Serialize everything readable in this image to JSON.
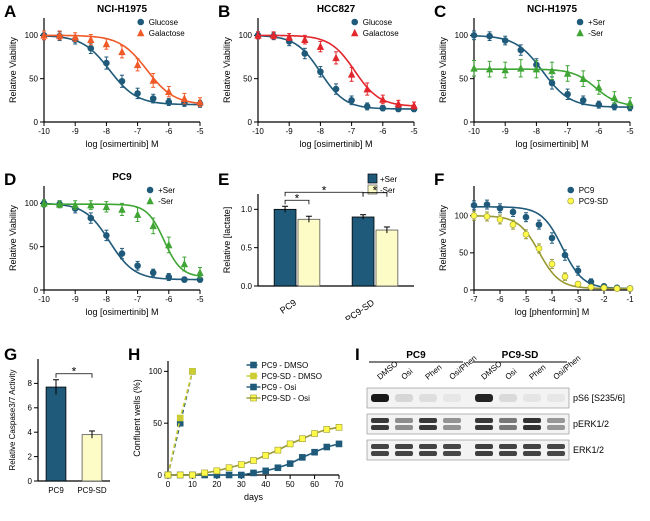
{
  "colors": {
    "blue": "#1f5a7a",
    "orange": "#f05a28",
    "green": "#3fa535",
    "yellow": "#fff94a",
    "yellow_fill": "#fdfcc6",
    "grey": "#444444",
    "black": "#000000"
  },
  "panelA": {
    "label": "A",
    "title": "NCI-H1975",
    "type": "dose_response",
    "xlabel": "log [osimertinib] M",
    "ylabel": "Relative Viability",
    "xlim": [
      -10,
      -5
    ],
    "ylim": [
      0,
      120
    ],
    "yticks": [
      0,
      50,
      100
    ],
    "series": [
      {
        "name": "Glucose",
        "color": "#1f5a7a",
        "marker": "circle",
        "x": [
          -10,
          -9.5,
          -9,
          -8.5,
          -8,
          -7.5,
          -7,
          -6.5,
          -6,
          -5.5,
          -5
        ],
        "y": [
          100,
          99,
          95,
          85,
          68,
          47,
          33,
          27,
          23,
          22,
          21
        ],
        "err": [
          5,
          5,
          5,
          6,
          7,
          7,
          6,
          5,
          4,
          4,
          4
        ],
        "curve": {
          "top": 100,
          "bottom": 20,
          "ec50": -7.9,
          "hill": -1.0
        }
      },
      {
        "name": "Galactose",
        "color": "#f05a28",
        "marker": "triangle",
        "x": [
          -10,
          -9.5,
          -9,
          -8.5,
          -8,
          -7.5,
          -7,
          -6.5,
          -6,
          -5.5,
          -5
        ],
        "y": [
          100,
          100,
          98,
          95,
          90,
          81,
          66,
          48,
          35,
          27,
          23
        ],
        "err": [
          5,
          5,
          5,
          6,
          6,
          7,
          7,
          8,
          6,
          6,
          5
        ],
        "curve": {
          "top": 100,
          "bottom": 20,
          "ec50": -6.7,
          "hill": -1.0
        }
      }
    ]
  },
  "panelB": {
    "label": "B",
    "title": "HCC827",
    "type": "dose_response",
    "xlabel": "log [osimertinib] M",
    "ylabel": "Relative Viability",
    "xlim": [
      -10,
      -5
    ],
    "ylim": [
      0,
      120
    ],
    "yticks": [
      0,
      50,
      100
    ],
    "series": [
      {
        "name": "Glucose",
        "color": "#1f5a7a",
        "marker": "circle",
        "x": [
          -10,
          -9.5,
          -9,
          -8.5,
          -8,
          -7.5,
          -7,
          -6.5,
          -6,
          -5.5,
          -5
        ],
        "y": [
          100,
          99,
          93,
          79,
          58,
          38,
          25,
          18,
          16,
          15,
          15
        ],
        "err": [
          4,
          4,
          5,
          6,
          6,
          6,
          5,
          4,
          3,
          3,
          3
        ],
        "curve": {
          "top": 100,
          "bottom": 15,
          "ec50": -8.0,
          "hill": -1.1
        }
      },
      {
        "name": "Galactose",
        "color": "#e2262c",
        "marker": "triangle",
        "x": [
          -10,
          -9.5,
          -9,
          -8.5,
          -8,
          -7.5,
          -7,
          -6.5,
          -6,
          -5.5,
          -5
        ],
        "y": [
          100,
          100,
          98,
          95,
          87,
          74,
          55,
          38,
          26,
          21,
          19
        ],
        "err": [
          4,
          4,
          4,
          5,
          6,
          7,
          8,
          7,
          5,
          4,
          4
        ],
        "curve": {
          "top": 100,
          "bottom": 18,
          "ec50": -6.9,
          "hill": -1.1
        }
      }
    ]
  },
  "panelC": {
    "label": "C",
    "title": "NCI-H1975",
    "type": "dose_response",
    "xlabel": "log [osimertinib] M",
    "ylabel": "Relative Viability",
    "xlim": [
      -10,
      -5
    ],
    "ylim": [
      0,
      120
    ],
    "yticks": [
      0,
      50,
      100
    ],
    "series": [
      {
        "name": "+Ser",
        "color": "#1f5a7a",
        "marker": "circle",
        "x": [
          -10,
          -9.5,
          -9,
          -8.5,
          -8,
          -7.5,
          -7,
          -6.5,
          -6,
          -5.5,
          -5
        ],
        "y": [
          100,
          99,
          94,
          83,
          66,
          45,
          32,
          25,
          20,
          18,
          17
        ],
        "err": [
          5,
          5,
          5,
          6,
          7,
          7,
          6,
          5,
          4,
          4,
          4
        ],
        "curve": {
          "top": 100,
          "bottom": 17,
          "ec50": -7.8,
          "hill": -1.0
        }
      },
      {
        "name": "-Ser",
        "color": "#3fa535",
        "marker": "triangle",
        "x": [
          -10,
          -9.5,
          -9,
          -8.5,
          -8,
          -7.5,
          -7,
          -6.5,
          -6,
          -5.5,
          -5
        ],
        "y": [
          62,
          61,
          60,
          62,
          61,
          59,
          56,
          50,
          40,
          28,
          22
        ],
        "err": [
          9,
          9,
          9,
          10,
          10,
          10,
          9,
          9,
          8,
          7,
          6
        ],
        "curve": {
          "top": 61,
          "bottom": 18,
          "ec50": -6.1,
          "hill": -1.2
        }
      }
    ]
  },
  "panelD": {
    "label": "D",
    "title": "PC9",
    "type": "dose_response",
    "xlabel": "log [osimertinib] M",
    "ylabel": "Relative Viability",
    "xlim": [
      -10,
      -5
    ],
    "ylim": [
      0,
      120
    ],
    "yticks": [
      0,
      50,
      100
    ],
    "series": [
      {
        "name": "+Ser",
        "color": "#1f5a7a",
        "marker": "circle",
        "x": [
          -10,
          -9.5,
          -9,
          -8.5,
          -8,
          -7.5,
          -7,
          -6.5,
          -6,
          -5.5,
          -5
        ],
        "y": [
          100,
          99,
          94,
          83,
          63,
          42,
          28,
          20,
          15,
          12,
          12
        ],
        "err": [
          4,
          4,
          5,
          6,
          6,
          6,
          5,
          4,
          4,
          3,
          3
        ],
        "curve": {
          "top": 100,
          "bottom": 12,
          "ec50": -7.9,
          "hill": -1.1
        }
      },
      {
        "name": "-Ser",
        "color": "#3fa535",
        "marker": "triangle",
        "x": [
          -10,
          -9.5,
          -9,
          -8.5,
          -8,
          -7.5,
          -7,
          -6.5,
          -6,
          -5.5,
          -5
        ],
        "y": [
          100,
          99,
          98,
          98,
          96,
          93,
          87,
          74,
          52,
          30,
          20
        ],
        "err": [
          4,
          4,
          5,
          5,
          6,
          7,
          8,
          9,
          9,
          8,
          6
        ],
        "curve": {
          "top": 99,
          "bottom": 15,
          "ec50": -6.15,
          "hill": -1.6
        }
      }
    ]
  },
  "panelE": {
    "label": "E",
    "type": "bar",
    "ylabel": "Relative [lactate]",
    "ylim": [
      0,
      1.2
    ],
    "yticks": [
      0,
      0.5,
      1.0
    ],
    "groups": [
      "PC9",
      "PC9-SD"
    ],
    "subgroups": [
      {
        "name": "+Ser",
        "color": "#1f5a7a"
      },
      {
        "name": "-Ser",
        "color": "#fdfcc6",
        "stroke": "#555"
      }
    ],
    "values": [
      [
        1.0,
        0.87
      ],
      [
        0.9,
        0.73
      ]
    ],
    "err": [
      [
        0.04,
        0.04
      ],
      [
        0.03,
        0.04
      ]
    ],
    "sig": [
      [
        "PC9 +Ser",
        "PC9 -Ser"
      ],
      [
        "PC9 +Ser",
        "PC9-SD +Ser"
      ],
      [
        "PC9-SD +Ser",
        "PC9-SD -Ser"
      ]
    ]
  },
  "panelF": {
    "label": "F",
    "type": "dose_response",
    "xlabel": "log [phenformin] M",
    "ylabel": "Relative Viability",
    "xlim": [
      -7,
      -1
    ],
    "ylim": [
      0,
      140
    ],
    "yticks": [
      0,
      50,
      100
    ],
    "series": [
      {
        "name": "PC9",
        "color": "#1f5a7a",
        "marker": "circle",
        "x": [
          -7,
          -6.5,
          -6,
          -5.5,
          -5,
          -4.5,
          -4,
          -3.5,
          -3,
          -2.5,
          -2,
          -1.5,
          -1
        ],
        "y": [
          114,
          115,
          110,
          105,
          98,
          88,
          70,
          47,
          26,
          11,
          5,
          3,
          2
        ],
        "err": [
          6,
          6,
          6,
          6,
          6,
          6,
          7,
          7,
          6,
          4,
          3,
          2,
          2
        ],
        "curve": {
          "top": 112,
          "bottom": 2,
          "ec50": -3.6,
          "hill": -1.1
        }
      },
      {
        "name": "PC9-SD",
        "color": "#fff94a",
        "marker": "circle",
        "stroke": "#999933",
        "x": [
          -7,
          -6.5,
          -6,
          -5.5,
          -5,
          -4.5,
          -4,
          -3.5,
          -3,
          -2.5,
          -2,
          -1.5,
          -1
        ],
        "y": [
          100,
          99,
          95,
          88,
          75,
          56,
          35,
          18,
          8,
          4,
          3,
          2,
          2
        ],
        "err": [
          6,
          6,
          6,
          6,
          6,
          6,
          6,
          5,
          3,
          2,
          2,
          2,
          2
        ],
        "curve": {
          "top": 100,
          "bottom": 2,
          "ec50": -4.5,
          "hill": -1.1
        }
      }
    ]
  },
  "panelG": {
    "label": "G",
    "type": "bar",
    "ylabel": "Relative Caspase3/7 Activity",
    "ylim": [
      0,
      10
    ],
    "yticks": [
      0,
      2,
      4,
      6,
      8
    ],
    "bars": [
      {
        "name": "PC9",
        "value": 7.7,
        "err": 0.6,
        "color": "#1f5a7a"
      },
      {
        "name": "PC9-SD",
        "value": 3.8,
        "err": 0.3,
        "color": "#fdfcc6",
        "stroke": "#555"
      }
    ],
    "sig": [
      [
        "PC9",
        "PC9-SD"
      ]
    ]
  },
  "panelH": {
    "label": "H",
    "type": "line",
    "xlabel": "days",
    "ylabel": "Confluent wells (%)",
    "xlim": [
      0,
      70
    ],
    "ylim": [
      0,
      110
    ],
    "xticks": [
      0,
      10,
      20,
      30,
      40,
      50,
      60,
      70
    ],
    "yticks": [
      0,
      50,
      100
    ],
    "series": [
      {
        "name": "PC9 - DMSO",
        "color": "#1f5a7a",
        "dash": "4,3",
        "marker": "square",
        "x": [
          0,
          5,
          10
        ],
        "y": [
          0,
          50,
          100
        ]
      },
      {
        "name": "PC9-SD - DMSO",
        "color": "#cccc33",
        "dash": "4,3",
        "marker": "square",
        "x": [
          0,
          5,
          10
        ],
        "y": [
          0,
          55,
          100
        ]
      },
      {
        "name": "PC9 - Osi",
        "color": "#1f5a7a",
        "dash": "",
        "marker": "square",
        "x": [
          0,
          5,
          10,
          15,
          20,
          25,
          30,
          35,
          40,
          45,
          50,
          55,
          60,
          65,
          70
        ],
        "y": [
          0,
          0,
          0,
          0,
          0,
          0,
          0,
          2,
          4,
          7,
          11,
          17,
          22,
          27,
          30
        ]
      },
      {
        "name": "PC9-SD - Osi",
        "color": "#fff94a",
        "dash": "",
        "marker": "square",
        "stroke": "#999933",
        "x": [
          0,
          5,
          10,
          15,
          20,
          25,
          30,
          35,
          40,
          45,
          50,
          55,
          60,
          65,
          70
        ],
        "y": [
          0,
          0,
          0,
          2,
          4,
          7,
          10,
          14,
          19,
          24,
          30,
          35,
          40,
          44,
          46
        ]
      }
    ]
  },
  "panelI": {
    "label": "I",
    "type": "western",
    "groups": [
      "PC9",
      "PC9-SD"
    ],
    "lanes": [
      "DMSO",
      "Osi",
      "Phen",
      "Osi/Phen",
      "DMSO",
      "Osi",
      "Phen",
      "Osi/Phen"
    ],
    "rows": [
      {
        "name": "pS6 [S235/6]",
        "intensity": [
          1.0,
          0.1,
          0.06,
          0.02,
          0.95,
          0.08,
          0.03,
          0.02
        ]
      },
      {
        "name": "pERK1/2",
        "doublet": true,
        "intensity": [
          0.85,
          0.45,
          0.85,
          0.42,
          0.85,
          0.55,
          0.88,
          0.4
        ]
      },
      {
        "name": "ERK1/2",
        "doublet": true,
        "intensity": [
          0.8,
          0.8,
          0.8,
          0.78,
          0.82,
          0.8,
          0.8,
          0.78
        ]
      }
    ]
  }
}
